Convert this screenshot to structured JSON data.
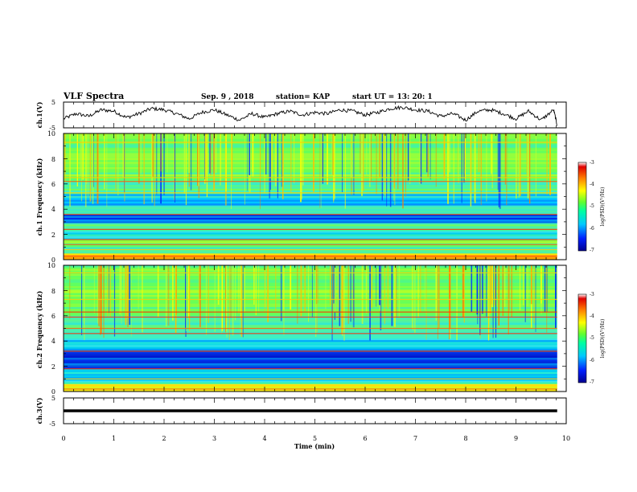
{
  "header": {
    "title": "VLF Spectra",
    "date": "Sep. 9 , 2018",
    "station": "station= KAP",
    "start": "start UT =  13: 20: 1"
  },
  "axes": {
    "ch1_wave_label": "ch.1(V)",
    "ch2_wave_label": "ch.3(V)",
    "freq_label_1": "ch.1 Frequency (kHz)",
    "freq_label_2": "ch.2 Frequency (kHz)",
    "time_label": "Time (min)",
    "colorbar_label": "log(PSD)(V²/Hz)"
  },
  "chart_data": [
    {
      "type": "line",
      "name": "waveform-ch1",
      "ylabel": "ch.1(V)",
      "ylim": [
        -5,
        5
      ],
      "yticks": [
        "5",
        "-5"
      ],
      "xlim": [
        0,
        10
      ],
      "x": [
        0,
        0.25,
        0.5,
        0.75,
        1.0,
        1.25,
        1.5,
        1.75,
        2.0,
        2.25,
        2.5,
        2.75,
        3.0,
        3.25,
        3.5,
        3.75,
        4.0,
        4.25,
        4.5,
        4.75,
        5.0,
        5.25,
        5.5,
        5.75,
        6.0,
        6.25,
        6.5,
        6.75,
        7.0,
        7.25,
        7.5,
        7.75,
        8.0,
        8.25,
        8.5,
        8.75,
        9.0,
        9.25,
        9.5,
        9.75,
        9.82
      ],
      "y": [
        -1.5,
        0.5,
        -0.5,
        2.0,
        1.5,
        -1.0,
        0.5,
        2.5,
        2.0,
        0.5,
        -1.5,
        1.0,
        2.0,
        0.0,
        -2.0,
        0.5,
        -1.0,
        0.5,
        1.5,
        0.0,
        1.0,
        0.5,
        2.0,
        1.5,
        0.0,
        1.0,
        2.5,
        3.0,
        2.0,
        1.5,
        -0.5,
        0.5,
        -2.0,
        1.5,
        2.0,
        0.5,
        -1.5,
        1.5,
        -2.0,
        2.0,
        -4.0
      ]
    },
    {
      "type": "heatmap",
      "name": "spectrogram-ch1",
      "xlim": [
        0,
        10
      ],
      "ylim": [
        0,
        10
      ],
      "ylabel": "ch.1 Frequency (kHz)",
      "yticks": [
        "0",
        "2",
        "4",
        "6",
        "8",
        "10"
      ],
      "colorbar": {
        "label": "log(PSD)(V²/Hz)",
        "range": [
          -7,
          -3
        ],
        "ticks": [
          "-3",
          "-4",
          "-5",
          "-6",
          "-7"
        ]
      },
      "bands_khz": [
        {
          "from": 0.0,
          "to": 0.5,
          "level": "high"
        },
        {
          "from": 0.5,
          "to": 1.0,
          "level": "mid"
        },
        {
          "from": 1.0,
          "to": 1.6,
          "level": "mid-high"
        },
        {
          "from": 1.6,
          "to": 2.4,
          "level": "mid-low"
        },
        {
          "from": 2.4,
          "to": 2.9,
          "level": "mid"
        },
        {
          "from": 2.9,
          "to": 3.6,
          "level": "low"
        },
        {
          "from": 3.6,
          "to": 4.3,
          "level": "mid"
        },
        {
          "from": 4.3,
          "to": 5.2,
          "level": "low-mid"
        },
        {
          "from": 5.2,
          "to": 6.2,
          "level": "mid"
        },
        {
          "from": 6.2,
          "to": 10.0,
          "level": "mid-high"
        }
      ],
      "tones_khz": [
        0.3,
        0.8,
        1.2,
        1.6,
        2.4,
        3.6,
        5.3,
        6.2,
        6.5,
        9.3
      ]
    },
    {
      "type": "heatmap",
      "name": "spectrogram-ch2",
      "xlim": [
        0,
        10
      ],
      "ylim": [
        0,
        10
      ],
      "ylabel": "ch.2 Frequency (kHz)",
      "yticks": [
        "0",
        "2",
        "4",
        "6",
        "8",
        "10"
      ],
      "colorbar": {
        "label": "log(PSD)(V²/Hz)",
        "range": [
          -7,
          -3
        ],
        "ticks": [
          "-3",
          "-4",
          "-5",
          "-6",
          "-7"
        ]
      },
      "bands_khz": [
        {
          "from": 0.0,
          "to": 0.6,
          "level": "high"
        },
        {
          "from": 0.6,
          "to": 1.8,
          "level": "mid-low"
        },
        {
          "from": 1.8,
          "to": 3.4,
          "level": "low"
        },
        {
          "from": 3.4,
          "to": 4.2,
          "level": "mid-low"
        },
        {
          "from": 4.2,
          "to": 5.0,
          "level": "mid"
        },
        {
          "from": 5.0,
          "to": 6.0,
          "level": "mid"
        },
        {
          "from": 6.0,
          "to": 10.0,
          "level": "mid-high"
        }
      ],
      "tones_khz": [
        0.2,
        0.5,
        1.0,
        1.8,
        3.2,
        4.6,
        5.0,
        5.9,
        6.3,
        7.3,
        9.4
      ]
    },
    {
      "type": "line",
      "name": "waveform-ch3",
      "ylabel": "ch.3(V)",
      "ylim": [
        -5,
        5
      ],
      "yticks": [
        "5",
        "-5"
      ],
      "xlim": [
        0,
        10
      ],
      "x": [
        0,
        9.82
      ],
      "y": [
        0,
        0
      ]
    }
  ],
  "xaxis": {
    "label": "Time (min)",
    "ticks": [
      "0",
      "1",
      "2",
      "3",
      "4",
      "5",
      "6",
      "7",
      "8",
      "9",
      "10"
    ]
  }
}
